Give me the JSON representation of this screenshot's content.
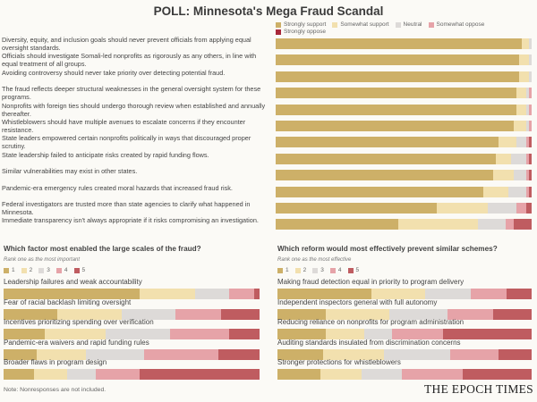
{
  "title": "POLL: Minnesota's Mega Fraud Scandal",
  "colors": {
    "support_scale": [
      "#cdb068",
      "#f2e0ae",
      "#dddad8",
      "#e6a3a8",
      "#bf5c60"
    ],
    "legend_strongly_oppose": "#a8283a",
    "background": "#fbfaf6"
  },
  "chart_data": [
    {
      "type": "bar",
      "orientation": "horizontal-stacked-percent",
      "legend": [
        "Strongly support",
        "Somewhat support",
        "Neutral",
        "Somewhat oppose",
        "Strongly oppose"
      ],
      "legend_placement": "top",
      "categories": [
        "Diversity, equity, and inclusion goals should never prevent officials from applying equal oversight standards.",
        "Officials should investigate Somali-led nonprofits as rigorously as any others, in line with equal treatment of all groups.",
        "Avoiding controversy should never take priority over detecting potential fraud.",
        "The fraud reflects deeper structural weaknesses in the general oversight system for these programs.",
        "Nonprofits with foreign ties should undergo thorough review when established and annually thereafter.",
        "Whistleblowers should have multiple avenues to escalate concerns if they encounter resistance.",
        "State leaders empowered certain nonprofits politically in ways that discouraged proper scrutiny.",
        "State leadership failed to anticipate risks created by rapid funding flows.",
        "Similar vulnerabilities may exist in other states.",
        "Pandemic-era emergency rules created moral hazards that increased fraud risk.",
        "Federal investigators are trusted more than state agencies to clarify what happened in Minnesota.",
        "Immediate transparency isn't always appropriate if it risks compromising an investigation."
      ],
      "series": [
        {
          "name": "Strongly support",
          "values": [
            96,
            95,
            95,
            94,
            94,
            93,
            87,
            86,
            85,
            81,
            63,
            48
          ]
        },
        {
          "name": "Somewhat support",
          "values": [
            3,
            4,
            4,
            4,
            4,
            5,
            7,
            6,
            8,
            10,
            20,
            31
          ]
        },
        {
          "name": "Neutral",
          "values": [
            1,
            1,
            1,
            1,
            1,
            1,
            4,
            6,
            5,
            7,
            11,
            11
          ]
        },
        {
          "name": "Somewhat oppose",
          "values": [
            0,
            0,
            0,
            1,
            1,
            1,
            1,
            1,
            1,
            1,
            4,
            3
          ]
        },
        {
          "name": "Strongly oppose",
          "values": [
            0,
            0,
            0,
            0,
            0,
            0,
            1,
            1,
            1,
            1,
            2,
            7
          ]
        }
      ]
    },
    {
      "type": "bar",
      "orientation": "horizontal-stacked-percent",
      "title": "Which factor most enabled the large scales of the fraud?",
      "subtitle": "Rank one as the most important",
      "legend": [
        "1",
        "2",
        "3",
        "4",
        "5"
      ],
      "legend_placement": "top",
      "categories": [
        "Leadership failures and weak accountability",
        "Fear of racial backlash limiting oversight",
        "Incentives prioritizing spending over verification",
        "Pandemic-era waivers and rapid funding rules",
        "Broader flaws in program design"
      ],
      "series": [
        {
          "name": "1",
          "values": [
            53,
            21,
            16,
            13,
            12
          ]
        },
        {
          "name": "2",
          "values": [
            22,
            25,
            24,
            19,
            13
          ]
        },
        {
          "name": "3",
          "values": [
            13,
            21,
            25,
            23,
            11
          ]
        },
        {
          "name": "4",
          "values": [
            10,
            18,
            23,
            29,
            17
          ]
        },
        {
          "name": "5",
          "values": [
            2,
            15,
            12,
            16,
            47
          ]
        }
      ]
    },
    {
      "type": "bar",
      "orientation": "horizontal-stacked-percent",
      "title": "Which reform would most effectively prevent similar schemes?",
      "subtitle": "Rank one as the most effective",
      "legend": [
        "1",
        "2",
        "3",
        "4",
        "5"
      ],
      "legend_placement": "top",
      "categories": [
        "Making fraud detection equal in priority to program delivery",
        "Independent inspectors general with full autonomy",
        "Reducing reliance on nonprofits for program administration",
        "Auditing standards insulated from discrimination concerns",
        "Stronger protections for whistleblowers"
      ],
      "series": [
        {
          "name": "1",
          "values": [
            37,
            19,
            19,
            18,
            17
          ]
        },
        {
          "name": "2",
          "values": [
            21,
            25,
            15,
            24,
            16
          ]
        },
        {
          "name": "3",
          "values": [
            18,
            23,
            11,
            26,
            16
          ]
        },
        {
          "name": "4",
          "values": [
            14,
            18,
            20,
            19,
            24
          ]
        },
        {
          "name": "5",
          "values": [
            10,
            15,
            35,
            13,
            27
          ]
        }
      ]
    }
  ],
  "note": "Note: Nonresponses are not included.",
  "logo": "THE EPOCH TIMES"
}
